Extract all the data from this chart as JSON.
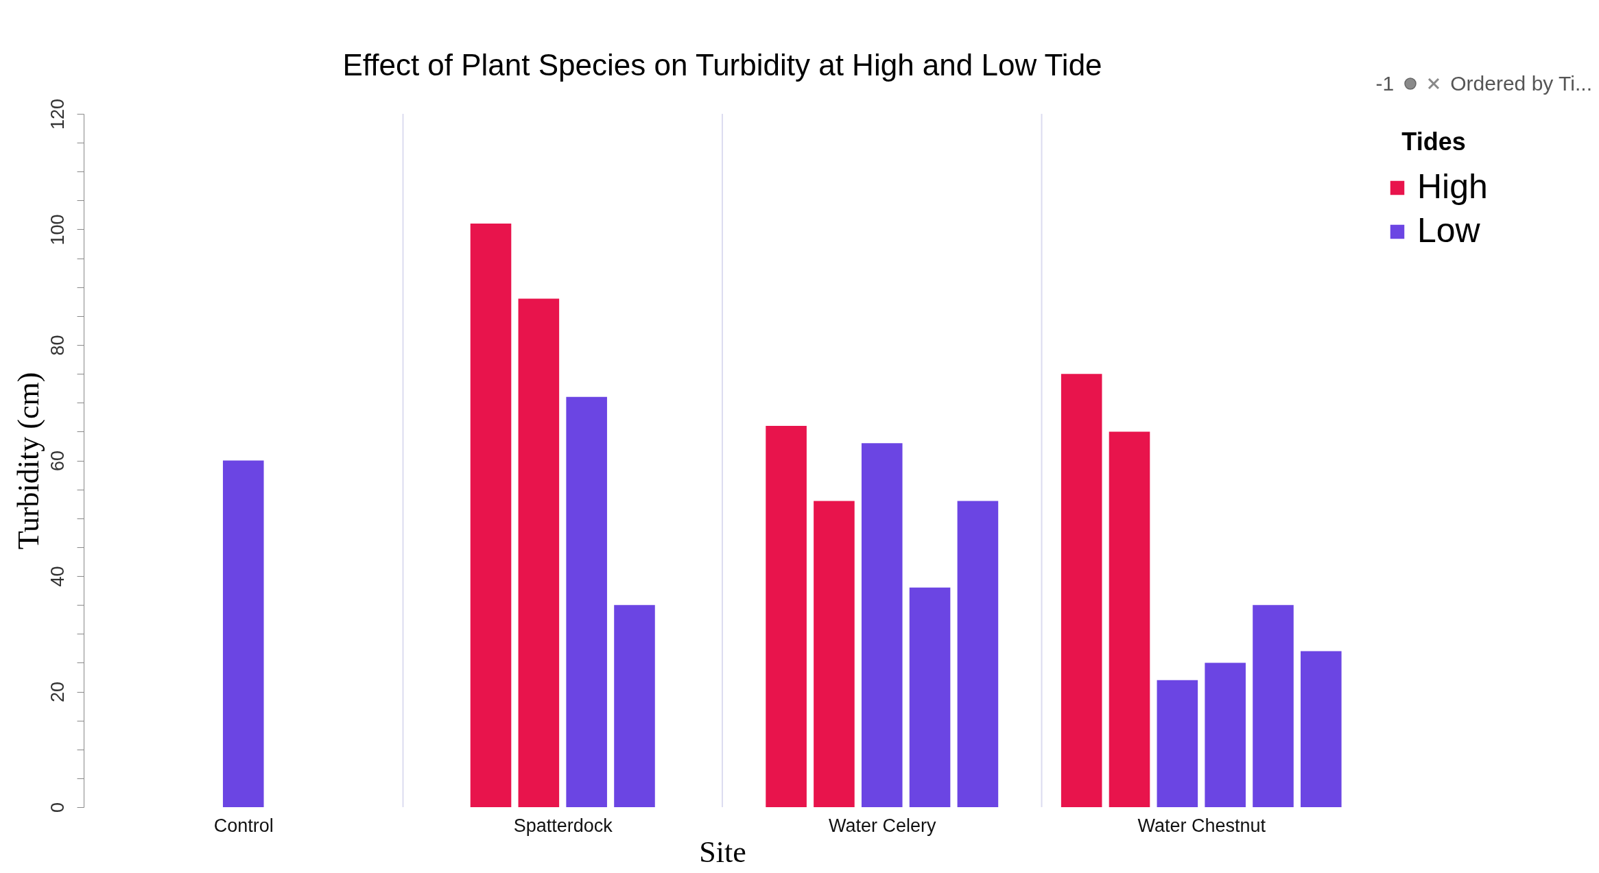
{
  "chart_data": {
    "type": "bar",
    "title": "Effect of Plant Species on Turbidity at High and Low Tide",
    "xlabel": "Site",
    "ylabel": "Turbidity (cm)",
    "legend_title": "Tides",
    "legend": "top right",
    "categories": [
      "Control",
      "Spatterdock",
      "Water Celery",
      "Water Chestnut"
    ],
    "series": [
      {
        "name": "High",
        "color": "#e8144c",
        "values": [
          null,
          101,
          66,
          75
        ]
      },
      {
        "color": "#e8144c",
        "values": [
          null,
          88,
          53,
          65
        ]
      },
      {
        "name": "Low",
        "color": "#6b45e3",
        "values": [
          60,
          71,
          63,
          22
        ]
      },
      {
        "color": "#6b45e3",
        "values": [
          null,
          35,
          38,
          25
        ]
      },
      {
        "color": "#6b45e3",
        "values": [
          null,
          null,
          53,
          35
        ]
      },
      {
        "color": "#6b45e3",
        "values": [
          null,
          null,
          null,
          27
        ]
      }
    ],
    "ylim": [
      0,
      120
    ],
    "yticks": [
      0,
      {
        "value": 5,
        "label": null
      },
      {
        "value": 10,
        "label": null
      },
      {
        "value": 15,
        "label": null
      },
      20,
      {
        "value": 25,
        "label": null
      },
      {
        "value": 30,
        "label": null
      },
      {
        "value": 35,
        "label": null
      },
      40,
      {
        "value": 45,
        "label": null
      },
      {
        "value": 50,
        "label": null
      },
      {
        "value": 55,
        "label": null
      },
      60,
      {
        "value": 65,
        "label": null
      },
      {
        "value": 70,
        "label": null
      },
      {
        "value": 75,
        "label": null
      },
      80,
      {
        "value": 85,
        "label": null
      },
      {
        "value": 90,
        "label": null
      },
      {
        "value": 95,
        "label": null
      },
      100,
      {
        "value": 105,
        "label": null
      },
      {
        "value": 110,
        "label": null
      },
      {
        "value": 115,
        "label": null
      },
      120
    ],
    "grid": "x",
    "annotations": [
      "-1",
      "Ordered by Ti..."
    ]
  }
}
